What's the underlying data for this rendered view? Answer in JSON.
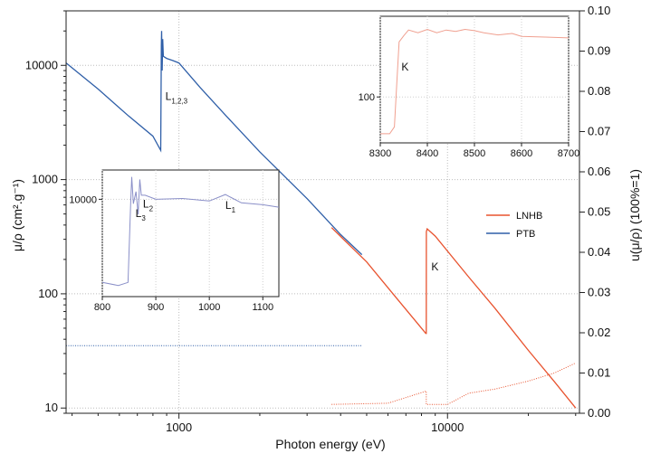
{
  "chart_data": {
    "type": "line",
    "xlabel": "Photon energy (eV)",
    "ylabel_left": "μ/ρ (cm².g⁻¹)",
    "ylabel_right": "u(μ/ρ) (100%=1)",
    "x_scale": "log",
    "y_scale": "log",
    "xlim": [
      380,
      31000
    ],
    "ylim": [
      9,
      30000
    ],
    "y2lim": [
      0,
      0.1
    ],
    "grid": true,
    "x_ticks": [
      {
        "value": 1000,
        "label": "1000"
      },
      {
        "value": 10000,
        "label": "10000"
      }
    ],
    "y_ticks": [
      {
        "value": 10,
        "label": "10"
      },
      {
        "value": 100,
        "label": "100"
      },
      {
        "value": 1000,
        "label": "1000"
      },
      {
        "value": 10000,
        "label": "10000"
      }
    ],
    "y2_ticks": [
      "0.00",
      "0.01",
      "0.02",
      "0.03",
      "0.04",
      "0.05",
      "0.06",
      "0.07",
      "0.08",
      "0.09",
      "0.10"
    ],
    "legend": {
      "position": "right",
      "entries": [
        {
          "name": "LNHB",
          "color": "#e8532f"
        },
        {
          "name": "PTB",
          "color": "#2f5fa8"
        }
      ]
    },
    "series": [
      {
        "name": "PTB",
        "axis": "left",
        "color": "#2f5fa8",
        "points": [
          [
            380,
            10500
          ],
          [
            500,
            6200
          ],
          [
            650,
            3600
          ],
          [
            800,
            2400
          ],
          [
            855,
            1800
          ],
          [
            860,
            15000
          ],
          [
            862,
            20000
          ],
          [
            866,
            9000
          ],
          [
            870,
            17000
          ],
          [
            875,
            12000
          ],
          [
            900,
            11500
          ],
          [
            950,
            11000
          ],
          [
            1000,
            10500
          ],
          [
            1200,
            6400
          ],
          [
            1500,
            3600
          ],
          [
            2000,
            1750
          ],
          [
            3000,
            680
          ],
          [
            4000,
            330
          ],
          [
            4800,
            220
          ]
        ]
      },
      {
        "name": "LNHB",
        "axis": "left",
        "color": "#e8532f",
        "points": [
          [
            3700,
            380
          ],
          [
            5000,
            190
          ],
          [
            6500,
            90
          ],
          [
            8300,
            45
          ],
          [
            8334,
            45
          ],
          [
            8340,
            350
          ],
          [
            8400,
            370
          ],
          [
            9000,
            320
          ],
          [
            12000,
            140
          ],
          [
            15000,
            75
          ],
          [
            20000,
            32
          ],
          [
            25000,
            17
          ],
          [
            30000,
            10
          ]
        ]
      },
      {
        "name": "PTB uncertainty",
        "axis": "right",
        "color": "#2f5fa8",
        "points": [
          [
            380,
            0.0168
          ],
          [
            4800,
            0.0168
          ]
        ]
      },
      {
        "name": "LNHB uncertainty",
        "axis": "right",
        "color": "#e8532f",
        "points": [
          [
            3700,
            0.0022
          ],
          [
            6000,
            0.0025
          ],
          [
            8333,
            0.0055
          ],
          [
            8334,
            0.0022
          ],
          [
            10000,
            0.0022
          ],
          [
            12000,
            0.005
          ],
          [
            15000,
            0.006
          ],
          [
            20000,
            0.008
          ],
          [
            25000,
            0.01
          ],
          [
            30000,
            0.0125
          ]
        ]
      }
    ],
    "annotations": [
      {
        "text": "L",
        "sub": "1,2,3",
        "x": 890,
        "y": 5000
      },
      {
        "text": "K",
        "x": 8700,
        "y": 160
      }
    ],
    "insets": [
      {
        "name": "L-edge inset",
        "xlim": [
          800,
          1130
        ],
        "x_ticks": [
          "800",
          "900",
          "1000",
          "1100"
        ],
        "y_ticks": [
          {
            "value": 10000,
            "label": "10000"
          }
        ],
        "color": "#8a8fc8",
        "points": [
          [
            800,
            1400
          ],
          [
            830,
            1300
          ],
          [
            848,
            1400
          ],
          [
            853,
            9000
          ],
          [
            855,
            17000
          ],
          [
            858,
            9000
          ],
          [
            863,
            12000
          ],
          [
            867,
            7000
          ],
          [
            870,
            16000
          ],
          [
            873,
            11000
          ],
          [
            880,
            11000
          ],
          [
            900,
            10000
          ],
          [
            950,
            10200
          ],
          [
            1000,
            9600
          ],
          [
            1030,
            11200
          ],
          [
            1060,
            9200
          ],
          [
            1100,
            8800
          ],
          [
            1130,
            8300
          ]
        ],
        "annotations": [
          {
            "text": "L",
            "sub": "3",
            "x": 862,
            "y": 6600
          },
          {
            "text": "L",
            "sub": "2",
            "x": 876,
            "y": 8200
          },
          {
            "text": "L",
            "sub": "1",
            "x": 1030,
            "y": 8000
          }
        ]
      },
      {
        "name": "K-edge inset",
        "xlim": [
          8300,
          8700
        ],
        "x_ticks": [
          "8300",
          "8400",
          "8500",
          "8600",
          "8700"
        ],
        "y_ticks": [
          {
            "value": 100,
            "label": "100"
          }
        ],
        "color": "#f0a090",
        "points": [
          [
            8300,
            48
          ],
          [
            8320,
            48
          ],
          [
            8330,
            55
          ],
          [
            8335,
            130
          ],
          [
            8340,
            300
          ],
          [
            8350,
            340
          ],
          [
            8360,
            380
          ],
          [
            8380,
            360
          ],
          [
            8400,
            385
          ],
          [
            8420,
            360
          ],
          [
            8440,
            380
          ],
          [
            8460,
            370
          ],
          [
            8480,
            385
          ],
          [
            8500,
            375
          ],
          [
            8520,
            360
          ],
          [
            8550,
            345
          ],
          [
            8580,
            355
          ],
          [
            8600,
            335
          ],
          [
            8650,
            330
          ],
          [
            8700,
            325
          ]
        ],
        "annotations": [
          {
            "text": "K",
            "x": 8345,
            "y": 170
          }
        ]
      }
    ]
  }
}
